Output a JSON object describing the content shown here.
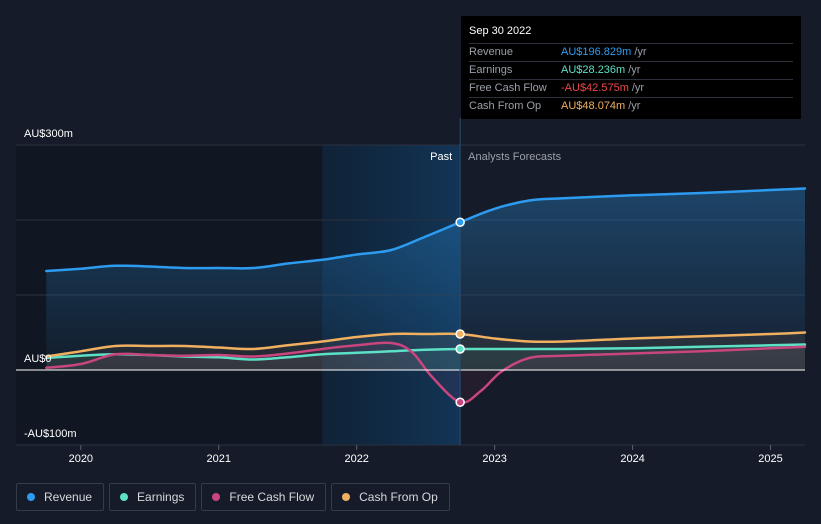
{
  "tooltip": {
    "date": "Sep 30 2022",
    "rows": [
      {
        "label": "Revenue",
        "value": "AU$196.829m",
        "unit": "/yr",
        "color": "#2d9cf0"
      },
      {
        "label": "Earnings",
        "value": "AU$28.236m",
        "unit": "/yr",
        "color": "#5ce0c6"
      },
      {
        "label": "Free Cash Flow",
        "value": "-AU$42.575m",
        "unit": "/yr",
        "color": "#f0454a"
      },
      {
        "label": "Cash From Op",
        "value": "AU$48.074m",
        "unit": "/yr",
        "color": "#f0b060"
      }
    ]
  },
  "legend": [
    {
      "label": "Revenue",
      "color": "#2d9cf0"
    },
    {
      "label": "Earnings",
      "color": "#5ce0c6"
    },
    {
      "label": "Free Cash Flow",
      "color": "#c8457e"
    },
    {
      "label": "Cash From Op",
      "color": "#f0b060"
    }
  ],
  "chart_data": {
    "type": "line",
    "x_label_ticks": [
      "2020",
      "2021",
      "2022",
      "2023",
      "2024",
      "2025"
    ],
    "x_ticks_values": [
      2020,
      2021,
      2022,
      2023,
      2024,
      2025
    ],
    "y_tick_labels": {
      "300": "AU$300m",
      "0": "AU$0",
      "-100": "-AU$100m"
    },
    "ylim": [
      -100,
      300
    ],
    "xlim": [
      2019.53,
      2025.25
    ],
    "past_label": "Past",
    "forecast_label": "Analysts Forecasts",
    "divider_x": 2022.75,
    "highlight_start": 2021.75,
    "series": [
      {
        "name": "Revenue",
        "color": "#2d9cf0",
        "area": true,
        "x": [
          2019.75,
          2020.0,
          2020.25,
          2020.5,
          2020.75,
          2021.0,
          2021.25,
          2021.5,
          2021.75,
          2022.0,
          2022.25,
          2022.5,
          2022.75,
          2023.0,
          2023.25,
          2023.5,
          2024.0,
          2024.5,
          2025.0,
          2025.25
        ],
        "y": [
          132,
          135,
          139,
          138,
          136,
          136,
          136,
          142,
          147,
          154,
          160,
          178,
          197,
          215,
          226,
          229,
          233,
          236,
          240,
          242
        ]
      },
      {
        "name": "Earnings",
        "color": "#5ce0c6",
        "area": false,
        "x": [
          2019.75,
          2020.0,
          2020.25,
          2020.5,
          2020.75,
          2021.0,
          2021.25,
          2021.5,
          2021.75,
          2022.0,
          2022.25,
          2022.5,
          2022.75,
          2023.0,
          2023.5,
          2024.0,
          2024.5,
          2025.0,
          2025.25
        ],
        "y": [
          16,
          19,
          21,
          20,
          18,
          17,
          14,
          17,
          21,
          23,
          25,
          27,
          28,
          28,
          28,
          29,
          31,
          33,
          34
        ]
      },
      {
        "name": "Free Cash Flow",
        "color": "#c8457e",
        "area": false,
        "x": [
          2019.75,
          2020.0,
          2020.25,
          2020.5,
          2020.75,
          2021.0,
          2021.25,
          2021.5,
          2021.75,
          2022.0,
          2022.25,
          2022.4,
          2022.55,
          2022.75,
          2022.9,
          2023.05,
          2023.25,
          2023.5,
          2024.0,
          2024.5,
          2025.0,
          2025.25
        ],
        "y": [
          3,
          8,
          21,
          20,
          19,
          20,
          18,
          22,
          28,
          33,
          36,
          24,
          -10,
          -43,
          -28,
          -2,
          16,
          19,
          22,
          25,
          29,
          31
        ]
      },
      {
        "name": "Cash From Op",
        "color": "#f0b060",
        "area": false,
        "x": [
          2019.75,
          2020.0,
          2020.25,
          2020.5,
          2020.75,
          2021.0,
          2021.25,
          2021.5,
          2021.75,
          2022.0,
          2022.25,
          2022.5,
          2022.75,
          2023.0,
          2023.25,
          2023.5,
          2024.0,
          2024.5,
          2025.0,
          2025.25
        ],
        "y": [
          18,
          25,
          32,
          32,
          32,
          30,
          28,
          33,
          38,
          44,
          48,
          48,
          48,
          42,
          38,
          38,
          42,
          45,
          48,
          50
        ]
      }
    ],
    "markers": [
      {
        "series": "Revenue",
        "x": 2022.75,
        "y": 197,
        "color": "#2d9cf0"
      },
      {
        "series": "Cash From Op",
        "x": 2022.75,
        "y": 48,
        "color": "#f0b060"
      },
      {
        "series": "Earnings",
        "x": 2022.75,
        "y": 28,
        "color": "#5ce0c6"
      },
      {
        "series": "Free Cash Flow",
        "x": 2022.75,
        "y": -43,
        "color": "#c8457e"
      }
    ]
  }
}
